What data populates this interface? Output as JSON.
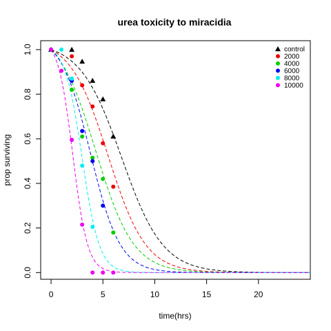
{
  "chart_data": {
    "type": "scatter",
    "title": "urea toxicity to miracidia",
    "xlabel": "time(hrs)",
    "ylabel": "prop surviving",
    "xlim": [
      -1,
      25
    ],
    "ylim": [
      -0.03,
      1.04
    ],
    "xticks": [
      0,
      5,
      10,
      15,
      20
    ],
    "yticks": [
      0.0,
      0.2,
      0.4,
      0.6,
      0.8,
      1.0
    ],
    "xtick_labels": [
      "0",
      "5",
      "10",
      "15",
      "20"
    ],
    "ytick_labels": [
      "0.0",
      "0.2",
      "0.4",
      "0.6",
      "0.8",
      "1.0"
    ],
    "legend_position": "top-right",
    "grid": false,
    "series": [
      {
        "name": "control",
        "color": "#000000",
        "marker": "triangle",
        "points": [
          [
            0,
            1.0
          ],
          [
            2,
            1.0
          ],
          [
            3,
            0.947
          ],
          [
            4,
            0.861
          ],
          [
            5,
            0.778
          ],
          [
            6,
            0.611
          ]
        ],
        "curve": {
          "t50": 6.8,
          "k": 0.5
        }
      },
      {
        "name": "2000",
        "color": "#ee0000",
        "marker": "circle",
        "points": [
          [
            0,
            1.0
          ],
          [
            2,
            0.97
          ],
          [
            3,
            0.84
          ],
          [
            4,
            0.745
          ],
          [
            5,
            0.58
          ],
          [
            6,
            0.385
          ]
        ],
        "curve": {
          "t50": 5.5,
          "k": 0.55
        }
      },
      {
        "name": "4000",
        "color": "#00cc00",
        "marker": "circle",
        "points": [
          [
            0,
            1.0
          ],
          [
            2,
            0.82
          ],
          [
            3,
            0.61
          ],
          [
            4,
            0.515
          ],
          [
            5,
            0.42
          ],
          [
            6,
            0.18
          ]
        ],
        "curve": {
          "t50": 4.3,
          "k": 0.55
        }
      },
      {
        "name": "6000",
        "color": "#0000ee",
        "marker": "circle",
        "points": [
          [
            0,
            1.0
          ],
          [
            2,
            0.86
          ],
          [
            3,
            0.635
          ],
          [
            4,
            0.5
          ],
          [
            5,
            0.3
          ]
        ],
        "curve": {
          "t50": 3.8,
          "k": 0.7
        }
      },
      {
        "name": "8000",
        "color": "#00eeee",
        "marker": "circle",
        "points": [
          [
            0,
            1.0
          ],
          [
            1,
            1.0
          ],
          [
            2,
            0.87
          ],
          [
            3,
            0.48
          ],
          [
            4,
            0.205
          ]
        ],
        "curve": {
          "t50": 3.0,
          "k": 1.2
        }
      },
      {
        "name": "10000",
        "color": "#ee00ee",
        "marker": "circle",
        "points": [
          [
            0,
            1.0
          ],
          [
            1,
            0.905
          ],
          [
            2,
            0.595
          ],
          [
            3,
            0.215
          ],
          [
            4,
            0.0
          ],
          [
            5,
            0.0
          ],
          [
            6,
            0.0
          ]
        ],
        "curve": {
          "t50": 2.1,
          "k": 1.4
        }
      }
    ]
  }
}
